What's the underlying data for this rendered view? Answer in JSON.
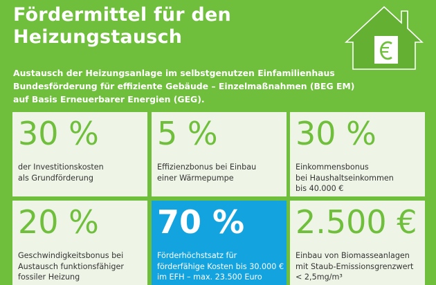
{
  "colors": {
    "background": "#6fbf3c",
    "card": "#eef4e6",
    "highlight": "#13a3df",
    "accent_text": "#6fbf3c"
  },
  "header": {
    "title_lines": [
      "Fördermittel für den",
      "Heizungstausch"
    ],
    "icon": "house-euro-icon"
  },
  "subtitle_lines": [
    "Austausch der Heizungsanlage im selbstgenutzen Einfamilienhaus",
    "Bundesförderung für effiziente Gebäude – Einzelmaßnahmen (BEG EM)",
    "auf Basis Erneuerbarer Energien (GEG)."
  ],
  "cards": [
    {
      "value": "30 %",
      "desc": [
        "der Investitionskosten",
        "als Grundförderung"
      ]
    },
    {
      "value": "5 %",
      "desc": [
        "Effizienzbonus bei Einbau",
        "einer Wärmepumpe"
      ]
    },
    {
      "value": "30 %",
      "desc": [
        "Einkommensbonus",
        "bei Haushaltseinkommen",
        "bis 40.000 €"
      ]
    },
    {
      "value": "20 %",
      "desc": [
        "Geschwindigkeitsbonus bei",
        "Austausch funktionsfähiger",
        "fossiler Heizung"
      ]
    },
    {
      "value": "70 %",
      "desc": [
        "Förderhöchstsatz für",
        "förderfähige Kosten bis 30.000 €",
        "im EFH – max. 23.500 Euro"
      ],
      "highlight": true
    },
    {
      "value": "2.500 €",
      "desc": [
        "Einbau von Biomasseanlagen",
        "mit Staub-Emissionsgrenzwert",
        "< 2,5mg/m³"
      ]
    }
  ]
}
